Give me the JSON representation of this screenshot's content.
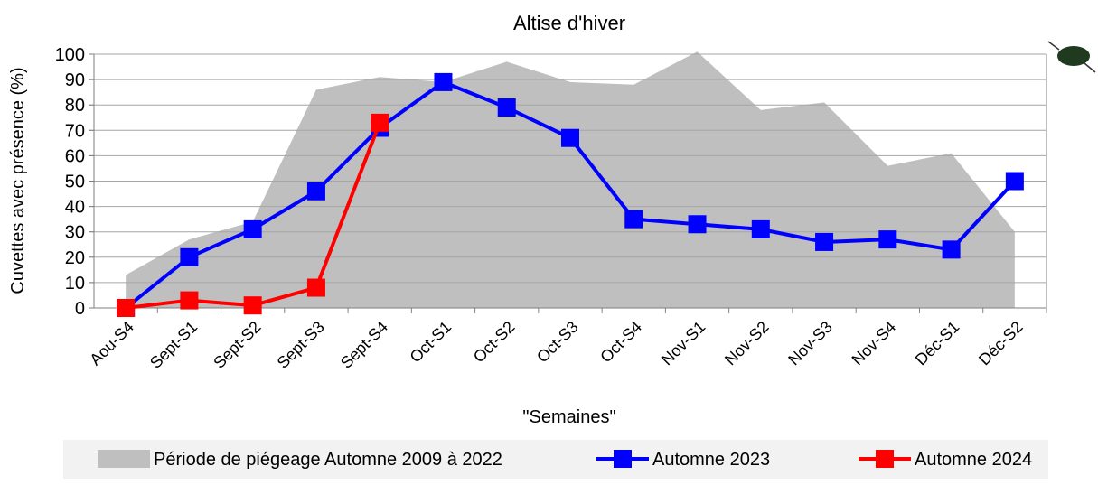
{
  "chart_data": {
    "type": "line",
    "title": "Altise d'hiver",
    "x_label": "\"Semaines\"",
    "y_label": "Cuvettes avec présence (%)",
    "categories": [
      "Aou-S4",
      "Sept-S1",
      "Sept-S2",
      "Sept-S3",
      "Sept-S4",
      "Oct-S1",
      "Oct-S2",
      "Oct-S3",
      "Oct-S4",
      "Nov-S1",
      "Nov-S2",
      "Nov-S3",
      "Nov-S4",
      "Déc-S1",
      "Déc-S2"
    ],
    "series": [
      {
        "name": "Période de piégeage Automne 2009 à 2022",
        "type": "area",
        "color": "#bfbfbf",
        "values": [
          13,
          27,
          34,
          86,
          91,
          89,
          97,
          89,
          88,
          101,
          78,
          81,
          56,
          61,
          30
        ]
      },
      {
        "name": "Automne 2023",
        "type": "line",
        "color": "#0000ff",
        "values": [
          0,
          20,
          31,
          46,
          71,
          89,
          79,
          67,
          35,
          33,
          31,
          26,
          27,
          23,
          50
        ]
      },
      {
        "name": "Automne 2024",
        "type": "line",
        "color": "#ff0000",
        "values": [
          0,
          3,
          1,
          8,
          73,
          null,
          null,
          null,
          null,
          null,
          null,
          null,
          null,
          null,
          null
        ]
      }
    ],
    "ylim": [
      0,
      100
    ],
    "yticks": [
      0,
      10,
      20,
      30,
      40,
      50,
      60,
      70,
      80,
      90,
      100
    ],
    "grid": true,
    "legend": "bottom"
  }
}
